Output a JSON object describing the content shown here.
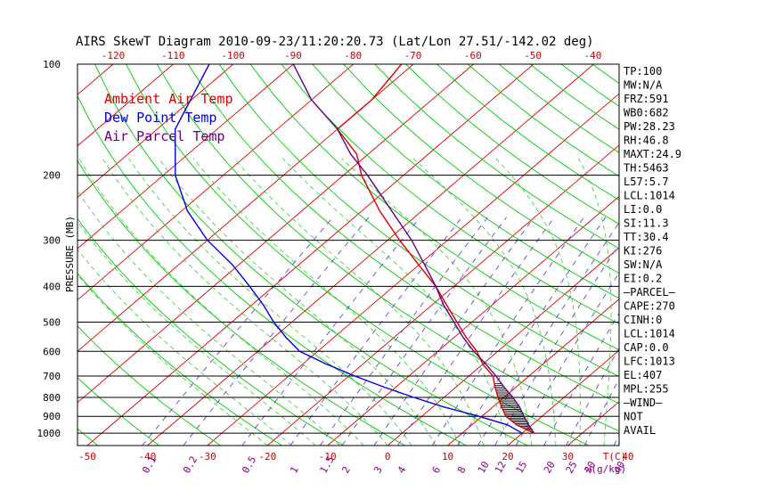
{
  "chart_data": {
    "type": "line",
    "title": "AIRS SkewT Diagram 2010-09-23/11:20:20.73 (Lat/Lon 27.51/-142.02 deg)",
    "ylabel": "PRESSURE (MB)",
    "xlabel_unit": "T(C)",
    "mixing_ratio_unit": "w(g/kg)",
    "pressure_levels": [
      100,
      200,
      300,
      400,
      500,
      600,
      700,
      800,
      900,
      1000
    ],
    "top_temp_ticks": [
      -120,
      -110,
      -100,
      -90,
      -80,
      -70,
      -60,
      -50,
      -40
    ],
    "bottom_temp_ticks": [
      -50,
      -40,
      -30,
      -20,
      -10,
      0,
      10,
      20,
      30,
      40
    ],
    "mixing_ratio_labels": [
      "0.1",
      "0.2",
      "0.5",
      "1",
      "1.5",
      "2",
      "3",
      "4",
      "6",
      "8",
      "10",
      "12",
      "15",
      "20",
      "25",
      "30",
      "40"
    ],
    "legend": [
      {
        "name": "Ambient Air Temp",
        "color": "#dd0000"
      },
      {
        "name": "Dew Point Temp",
        "color": "#0000dd"
      },
      {
        "name": "Air Parcel Temp",
        "color": "#660088"
      }
    ],
    "series": [
      {
        "name": "Ambient Air Temp",
        "color": "#dd0000",
        "points": [
          {
            "p": 1000,
            "t": 22
          },
          {
            "p": 950,
            "t": 17.5
          },
          {
            "p": 900,
            "t": 14
          },
          {
            "p": 850,
            "t": 11.5
          },
          {
            "p": 800,
            "t": 9
          },
          {
            "p": 750,
            "t": 6.5
          },
          {
            "p": 700,
            "t": 4
          },
          {
            "p": 650,
            "t": 0
          },
          {
            "p": 600,
            "t": -3.5
          },
          {
            "p": 550,
            "t": -8
          },
          {
            "p": 500,
            "t": -12.5
          },
          {
            "p": 450,
            "t": -17.5
          },
          {
            "p": 400,
            "t": -23
          },
          {
            "p": 350,
            "t": -30
          },
          {
            "p": 300,
            "t": -38
          },
          {
            "p": 250,
            "t": -47
          },
          {
            "p": 200,
            "t": -57
          },
          {
            "p": 175,
            "t": -62
          },
          {
            "p": 150,
            "t": -70
          },
          {
            "p": 125,
            "t": -70
          },
          {
            "p": 100,
            "t": -72
          }
        ]
      },
      {
        "name": "Dew Point Temp",
        "color": "#0000dd",
        "points": [
          {
            "p": 1000,
            "t": 20
          },
          {
            "p": 950,
            "t": 16
          },
          {
            "p": 900,
            "t": 9.5
          },
          {
            "p": 850,
            "t": 2
          },
          {
            "p": 800,
            "t": -5
          },
          {
            "p": 750,
            "t": -12
          },
          {
            "p": 700,
            "t": -19
          },
          {
            "p": 650,
            "t": -26
          },
          {
            "p": 600,
            "t": -33
          },
          {
            "p": 550,
            "t": -38
          },
          {
            "p": 500,
            "t": -43
          },
          {
            "p": 450,
            "t": -48
          },
          {
            "p": 400,
            "t": -54
          },
          {
            "p": 350,
            "t": -61
          },
          {
            "p": 300,
            "t": -70
          },
          {
            "p": 250,
            "t": -79
          },
          {
            "p": 200,
            "t": -88
          },
          {
            "p": 150,
            "t": -97
          },
          {
            "p": 100,
            "t": -104
          }
        ]
      },
      {
        "name": "Air Parcel Temp",
        "color": "#660088",
        "points": [
          {
            "p": 1000,
            "t": 22
          },
          {
            "p": 950,
            "t": 19.5
          },
          {
            "p": 900,
            "t": 17
          },
          {
            "p": 850,
            "t": 14.5
          },
          {
            "p": 800,
            "t": 11.5
          },
          {
            "p": 750,
            "t": 8
          },
          {
            "p": 700,
            "t": 4.5
          },
          {
            "p": 650,
            "t": 0.5
          },
          {
            "p": 600,
            "t": -4
          },
          {
            "p": 550,
            "t": -8.5
          },
          {
            "p": 500,
            "t": -13
          },
          {
            "p": 450,
            "t": -18
          },
          {
            "p": 400,
            "t": -23
          },
          {
            "p": 350,
            "t": -29
          },
          {
            "p": 300,
            "t": -36
          },
          {
            "p": 250,
            "t": -45
          },
          {
            "p": 200,
            "t": -56
          },
          {
            "p": 175,
            "t": -63
          },
          {
            "p": 150,
            "t": -70
          },
          {
            "p": 125,
            "t": -80
          },
          {
            "p": 100,
            "t": -90
          }
        ]
      }
    ],
    "indices": [
      "TP:100",
      "MW:N/A",
      "FRZ:591",
      "WB0:682",
      "PW:28.23",
      "RH:46.8",
      "MAXT:24.9",
      "TH:5463",
      "L57:5.7",
      "LCL:1014",
      "LI:0.0",
      "SI:11.3",
      "TT:30.4",
      "KI:276",
      "SW:N/A",
      "EI:0.2",
      "—PARCEL—",
      "CAPE:270",
      "CINH:0",
      "LCL:1014",
      "CAP:0.0",
      "LFC:1013",
      "EL:407",
      "MPL:255",
      "—WIND—",
      "NOT",
      "AVAIL"
    ],
    "colors": {
      "isotherm": "#dd0000",
      "dry_adiabat": "#00cc00",
      "moist_adiabat": "#33cc33",
      "mixing_ratio": "#6644cc",
      "isobar": "#000000",
      "tick_red": "#cc0000",
      "mixing_label": "#880088"
    }
  }
}
